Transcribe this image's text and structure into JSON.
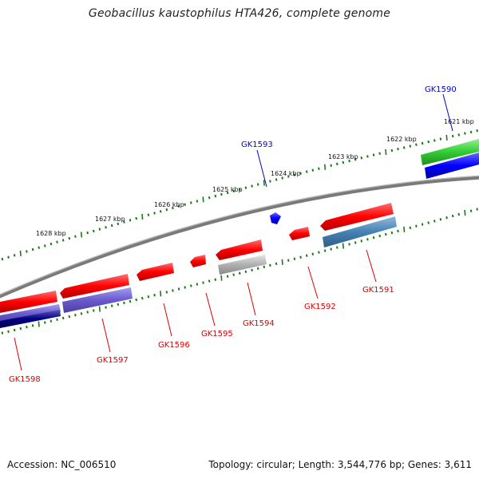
{
  "title": "Geobacillus kaustophilus HTA426, complete genome",
  "footer": {
    "accession": "Accession: NC_006510",
    "summary": "Topology: circular; Length: 3,544,776 bp; Genes: 3,611"
  },
  "kbp_ticks": [
    "1621 kbp",
    "1622 kbp",
    "1623 kbp",
    "1624 kbp",
    "1625 kbp",
    "1626 kbp",
    "1627 kbp",
    "1628 kbp"
  ],
  "genes": [
    {
      "name": "GK1590",
      "color": "#0000cc"
    },
    {
      "name": "GK1591",
      "color": "#dd0000"
    },
    {
      "name": "GK1592",
      "color": "#dd0000"
    },
    {
      "name": "GK1593",
      "color": "#0000cc"
    },
    {
      "name": "GK1594",
      "color": "#dd0000"
    },
    {
      "name": "GK1595",
      "color": "#dd0000"
    },
    {
      "name": "GK1596",
      "color": "#dd0000"
    },
    {
      "name": "GK1597",
      "color": "#dd0000"
    },
    {
      "name": "GK1598",
      "color": "#dd0000"
    }
  ],
  "colors": {
    "backbone": "#808080",
    "tick": "#1a7a1a",
    "cds_forward": "#ff0000",
    "cds_reverse": "#0000ff",
    "feature_purple": "#6a5acd",
    "feature_darkblue": "#000080",
    "feature_steelblue": "#4682b4",
    "feature_green": "#33cc33",
    "feature_gray": "#b0b0b0"
  }
}
